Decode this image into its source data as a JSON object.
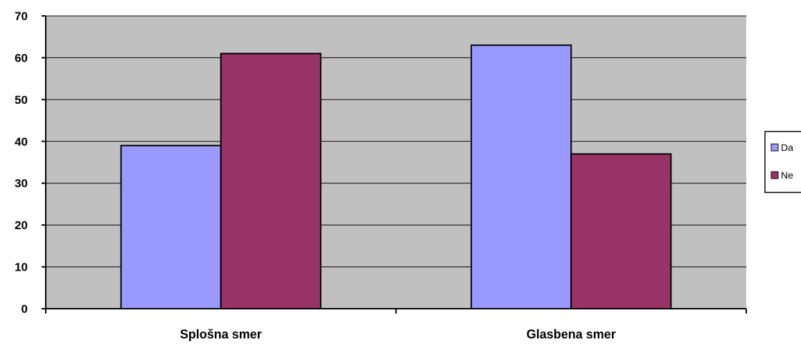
{
  "chart_data": {
    "type": "bar",
    "categories": [
      "Splošna smer",
      "Glasbena smer"
    ],
    "series": [
      {
        "name": "Da",
        "values": [
          39,
          63
        ],
        "color": "#9999FF"
      },
      {
        "name": "Ne",
        "values": [
          61,
          37
        ],
        "color": "#993366"
      }
    ],
    "ylim": [
      0,
      70
    ],
    "yticks": [
      0,
      10,
      20,
      30,
      40,
      50,
      60,
      70
    ],
    "plot_background": "#C0C0C0",
    "grid": true,
    "legend_position": "right"
  }
}
